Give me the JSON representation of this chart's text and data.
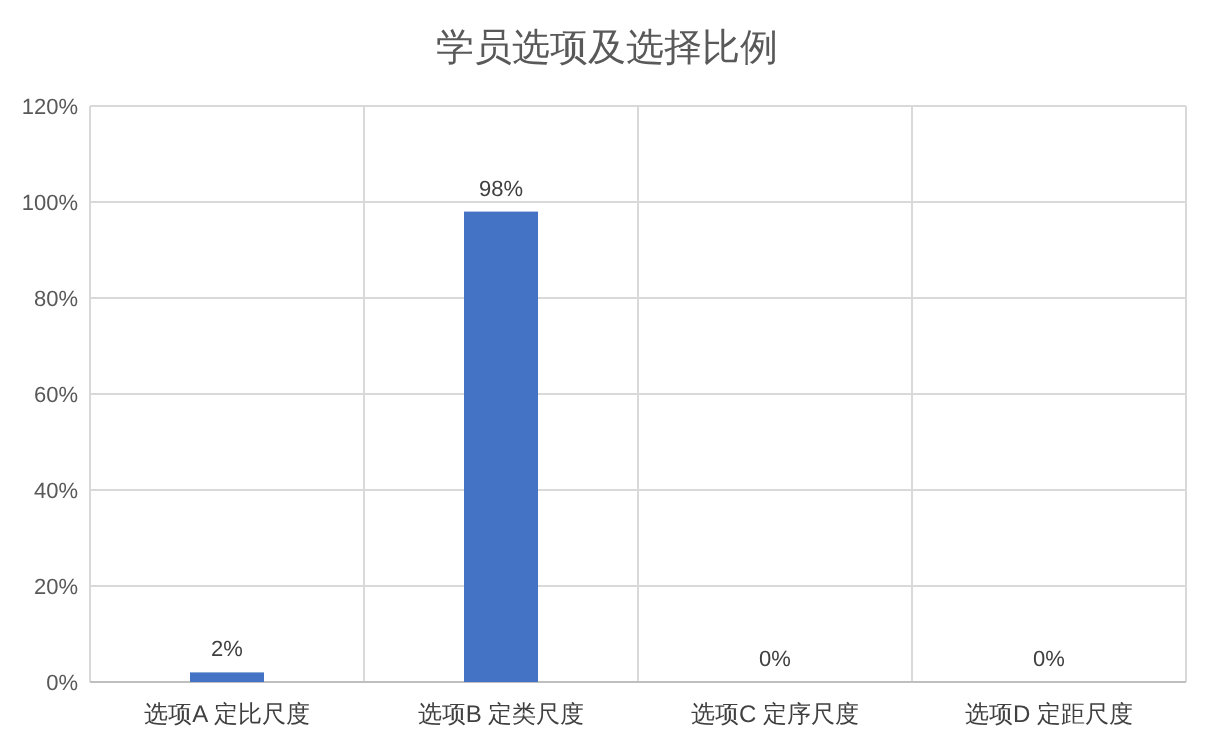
{
  "chart_data": {
    "type": "bar",
    "title": "学员选项及选择比例",
    "categories": [
      "选项A 定比尺度",
      "选项B 定类尺度",
      "选项C 定序尺度",
      "选项D 定距尺度"
    ],
    "values": [
      2,
      98,
      0,
      0
    ],
    "color": "#4472c4",
    "value_labels": [
      "2%",
      "98%",
      "0%",
      "0%"
    ],
    "ylim": [
      0,
      120
    ],
    "yticks": [
      {
        "value": 0,
        "label": "0%"
      },
      {
        "value": 20,
        "label": "20%"
      },
      {
        "value": 40,
        "label": "40%"
      },
      {
        "value": 60,
        "label": "60%"
      },
      {
        "value": 80,
        "label": "80%"
      },
      {
        "value": 100,
        "label": "100%"
      },
      {
        "value": 120,
        "label": "120%"
      }
    ],
    "grid": true
  }
}
